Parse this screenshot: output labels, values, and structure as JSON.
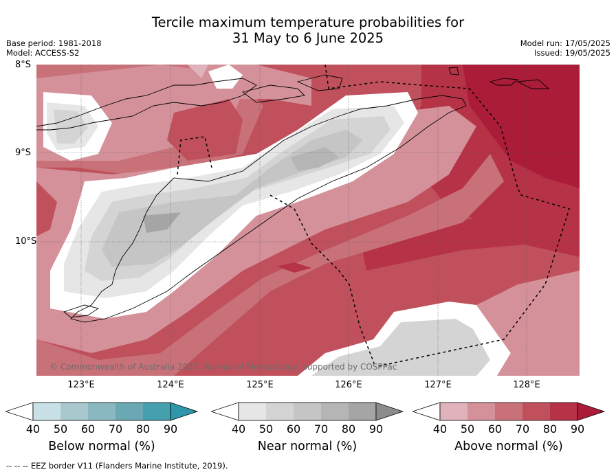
{
  "title_line1": "Tercile maximum temperature probabilities for",
  "title_line2": "31 May to 6 June 2025",
  "meta_left": [
    "Base period: 1981-2018",
    "Model: ACCESS-S2"
  ],
  "meta_right": [
    "Model run: 17/05/2025",
    "Issued: 19/05/2025"
  ],
  "map": {
    "lat_labels": [
      "8°S",
      "9°S",
      "10°S"
    ],
    "lon_labels": [
      "123°E",
      "124°E",
      "125°E",
      "126°E",
      "127°E",
      "128°E"
    ],
    "copyright": "© Commonwealth of Australia 2025, Bureau of Meteorology, supported by COSPPac"
  },
  "colorbars": [
    {
      "title": "Below normal (%)",
      "ticks": [
        "40",
        "50",
        "60",
        "70",
        "80",
        "90"
      ],
      "colors": [
        "#c9e1e6",
        "#a8c8ce",
        "#8ab8c1",
        "#6aa8b4",
        "#45a0ae",
        "#2d96a8"
      ]
    },
    {
      "title": "Near normal (%)",
      "ticks": [
        "40",
        "50",
        "60",
        "70",
        "80",
        "90"
      ],
      "colors": [
        "#e6e6e6",
        "#d4d4d4",
        "#c5c5c5",
        "#b5b5b5",
        "#a5a5a5",
        "#8c8c8c"
      ]
    },
    {
      "title": "Above normal (%)",
      "ticks": [
        "40",
        "50",
        "60",
        "70",
        "80",
        "90"
      ],
      "colors": [
        "#e0b3bc",
        "#d4919a",
        "#c87179",
        "#c0515c",
        "#b63246",
        "#ab1c38"
      ]
    }
  ],
  "footer": "--  --  -- EEZ border V11 (Flanders Marine Institute, 2019)."
}
